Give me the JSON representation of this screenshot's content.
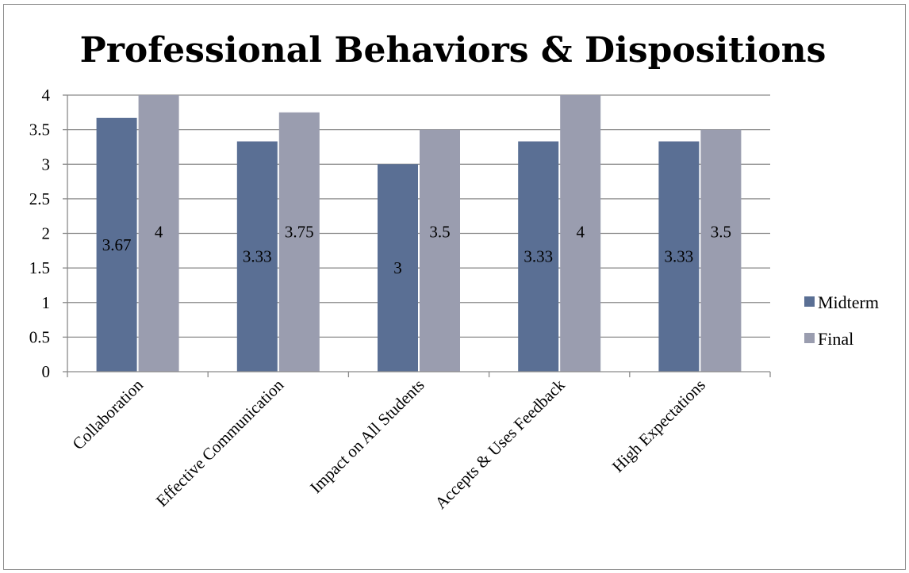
{
  "chart_data": {
    "type": "bar",
    "title": "Professional Behaviors & Dispositions",
    "categories": [
      "Collaboration",
      "Effective Communication",
      "Impact on All Students",
      "Accepts & Uses Feedback",
      "High Expectations"
    ],
    "series": [
      {
        "name": "Midterm",
        "values": [
          3.67,
          3.33,
          3,
          3.33,
          3.33
        ],
        "labels": [
          "3.67",
          "3.33",
          "3",
          "3.33",
          "3.33"
        ],
        "color": "#5a6f94"
      },
      {
        "name": "Final",
        "values": [
          4,
          3.75,
          3.5,
          4,
          3.5
        ],
        "labels": [
          "4",
          "3.75",
          "3.5",
          "4",
          "3.5"
        ],
        "color": "#9a9daf"
      }
    ],
    "ylim": [
      0,
      4
    ],
    "yticks": [
      "0",
      "0.5",
      "1",
      "1.5",
      "2",
      "2.5",
      "3",
      "3.5",
      "4"
    ],
    "xlabel": "",
    "ylabel": "",
    "grid": true,
    "legend_position": "right"
  }
}
